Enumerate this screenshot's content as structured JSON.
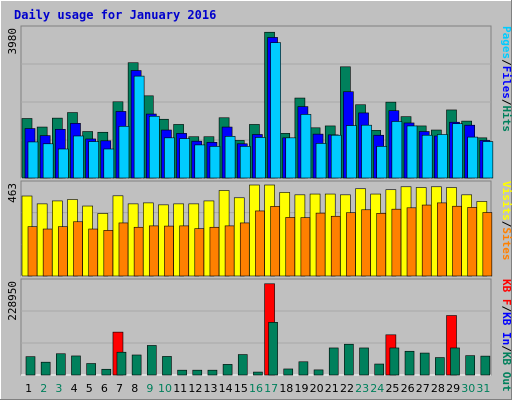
{
  "chart_data": [
    {
      "type": "bar",
      "title": "Daily usage for January 2016",
      "max_label": "3980",
      "ylim": [
        0,
        3980
      ],
      "labels": [
        {
          "text": "Pages",
          "color": "#00ccff"
        },
        {
          "text": "Files",
          "color": "#0000ff"
        },
        {
          "text": "Hits",
          "color": "#00805c"
        }
      ],
      "categories": [
        "1",
        "2",
        "3",
        "4",
        "5",
        "6",
        "7",
        "8",
        "9",
        "10",
        "11",
        "12",
        "13",
        "14",
        "15",
        "16",
        "17",
        "18",
        "19",
        "20",
        "21",
        "22",
        "23",
        "24",
        "25",
        "26",
        "27",
        "28",
        "29",
        "30",
        "31"
      ],
      "weekend_days": [
        "2",
        "3",
        "9",
        "10",
        "16",
        "17",
        "23",
        "24",
        "30",
        "31"
      ],
      "series": [
        {
          "key": "Hits",
          "color": "#00805c",
          "values": [
            1600,
            1370,
            1610,
            1760,
            1250,
            1230,
            2050,
            3100,
            2210,
            1580,
            1440,
            1110,
            1110,
            1620,
            1010,
            1440,
            3920,
            1200,
            2150,
            1350,
            1400,
            2990,
            1970,
            1280,
            2040,
            1650,
            1400,
            1290,
            1830,
            1530,
            1080
          ]
        },
        {
          "key": "Files",
          "color": "#0000ff",
          "values": [
            1330,
            1140,
            1310,
            1470,
            1050,
            1000,
            1790,
            2890,
            1720,
            1290,
            1200,
            990,
            960,
            1370,
            920,
            1170,
            3780,
            1080,
            1920,
            1180,
            1160,
            2320,
            1750,
            1150,
            1810,
            1480,
            1250,
            1130,
            1500,
            1420,
            1010
          ]
        },
        {
          "key": "Pages",
          "color": "#00ccff",
          "values": [
            970,
            920,
            780,
            1130,
            980,
            780,
            1390,
            2740,
            1660,
            1080,
            1060,
            890,
            850,
            1120,
            850,
            1090,
            3640,
            1080,
            1710,
            930,
            1150,
            1410,
            1420,
            850,
            1520,
            1400,
            1150,
            1170,
            1460,
            1100,
            980
          ]
        }
      ]
    },
    {
      "type": "bar",
      "max_label": "463",
      "ylim": [
        0,
        463
      ],
      "labels": [
        {
          "text": "Visits",
          "color": "#ffff00"
        },
        {
          "text": "Sites",
          "color": "#ff8000"
        }
      ],
      "categories": [
        "1",
        "2",
        "3",
        "4",
        "5",
        "6",
        "7",
        "8",
        "9",
        "10",
        "11",
        "12",
        "13",
        "14",
        "15",
        "16",
        "17",
        "18",
        "19",
        "20",
        "21",
        "22",
        "23",
        "24",
        "25",
        "26",
        "27",
        "28",
        "29",
        "30",
        "31"
      ],
      "series": [
        {
          "key": "Visits",
          "color": "#ffff00",
          "values": [
            407,
            367,
            382,
            389,
            356,
            318,
            408,
            367,
            372,
            362,
            367,
            367,
            382,
            435,
            398,
            463,
            463,
            425,
            413,
            417,
            417,
            413,
            444,
            417,
            439,
            454,
            450,
            454,
            450,
            413,
            379
          ]
        },
        {
          "key": "Sites",
          "color": "#ff8000",
          "values": [
            251,
            239,
            251,
            276,
            239,
            232,
            270,
            248,
            255,
            254,
            255,
            241,
            248,
            255,
            270,
            331,
            354,
            298,
            297,
            320,
            304,
            322,
            337,
            319,
            340,
            347,
            361,
            372,
            355,
            349,
            323
          ]
        }
      ]
    },
    {
      "type": "bar",
      "max_label": "228950",
      "ylim": [
        0,
        228950
      ],
      "labels": [
        {
          "text": "KB F",
          "color": "#ff0000"
        },
        {
          "text": "KB In",
          "color": "#0000ff"
        },
        {
          "text": "KB Out",
          "color": "#00805c"
        }
      ],
      "categories": [
        "1",
        "2",
        "3",
        "4",
        "5",
        "6",
        "7",
        "8",
        "9",
        "10",
        "11",
        "12",
        "13",
        "14",
        "15",
        "16",
        "17",
        "18",
        "19",
        "20",
        "21",
        "22",
        "23",
        "24",
        "25",
        "26",
        "27",
        "28",
        "29",
        "30",
        "31"
      ],
      "series": [
        {
          "key": "KB F",
          "color": "#ff0000",
          "values": [
            0,
            0,
            0,
            0,
            0,
            0,
            106700,
            0,
            0,
            0,
            0,
            0,
            0,
            0,
            0,
            0,
            227000,
            0,
            0,
            0,
            0,
            0,
            0,
            0,
            100000,
            0,
            0,
            0,
            148000,
            0,
            0
          ]
        },
        {
          "key": "KB Out",
          "color": "#00805c",
          "values": [
            45700,
            31900,
            52900,
            47400,
            28600,
            14300,
            56700,
            49800,
            73500,
            46200,
            12000,
            12000,
            12000,
            26400,
            50900,
            7300,
            131000,
            15000,
            32900,
            12700,
            67300,
            76600,
            67300,
            27300,
            67300,
            59100,
            54600,
            43400,
            67300,
            48200,
            47000
          ]
        }
      ]
    }
  ]
}
